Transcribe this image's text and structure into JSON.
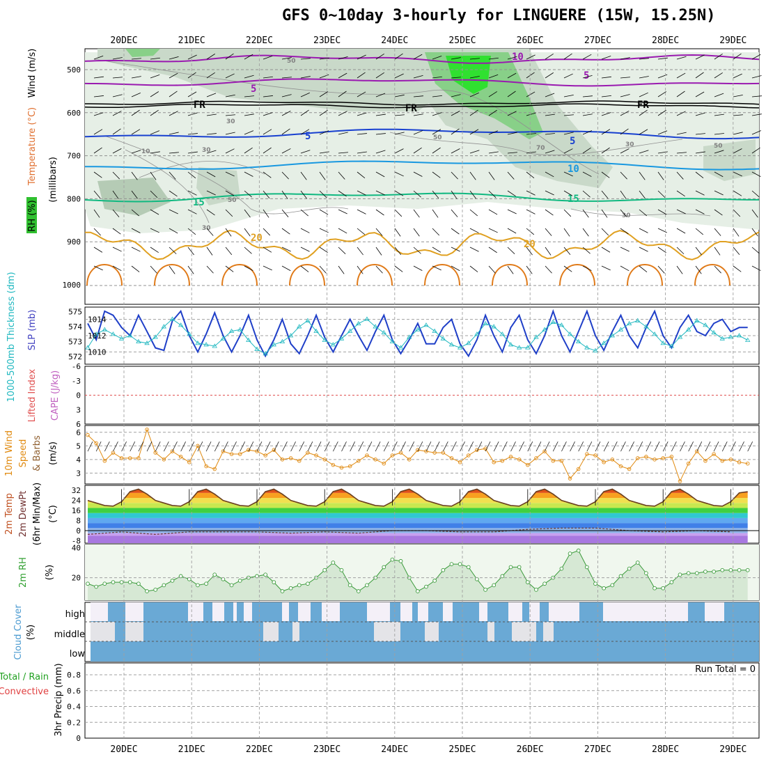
{
  "title": "GFS 0~10day 3-hourly for LINGUERE (15W, 15.25N)",
  "dates": [
    "20DEC",
    "21DEC",
    "22DEC",
    "23DEC",
    "24DEC",
    "25DEC",
    "26DEC",
    "27DEC",
    "28DEC",
    "29DEC"
  ],
  "panels": {
    "upper": {
      "ylabel_rh": "RH (%)",
      "ylabel_temp": "Temperature (°C)",
      "ylabel_wind": "Wind (m/s)",
      "ylabel_units": "(millibars)",
      "yticks": [
        "500",
        "600",
        "700",
        "800",
        "900",
        "1000"
      ],
      "contour_labels": [
        "10",
        "5",
        "5",
        "FR",
        "FR",
        "FR",
        "5",
        "5",
        "10",
        "15",
        "15",
        "20",
        "20",
        "50",
        "30",
        "10",
        "30",
        "30",
        "50",
        "50",
        "50",
        "70",
        "30",
        "30"
      ]
    },
    "slp": {
      "ylabel_thick": "1000-500mb Thickness (dm)",
      "ylabel_slp": "SLP (mb)",
      "yticks_left": [
        "575",
        "574",
        "573",
        "572"
      ],
      "yticks_right": [
        "1014",
        "1012",
        "1010"
      ]
    },
    "li": {
      "ylabel_li": "Lifted Index",
      "ylabel_cape": "CAPE (J/kg)",
      "yticks": [
        "-6",
        "-3",
        "0",
        "3",
        "6"
      ]
    },
    "wind10": {
      "ylabel_a": "10m Wind",
      "ylabel_b": "Speed",
      "ylabel_c": "& Barbs",
      "ylabel_units": "(m/s)",
      "yticks": [
        "6",
        "5",
        "4",
        "3"
      ]
    },
    "temp2m": {
      "ylabel_a": "2m Temp",
      "ylabel_b": "2m DewPt",
      "ylabel_c": "(6hr Min/Max)",
      "ylabel_units": "(°C)",
      "yticks": [
        "32",
        "24",
        "16",
        "8",
        "0",
        "-8"
      ]
    },
    "rh2m": {
      "ylabel": "2m RH",
      "ylabel_units": "(%)",
      "yticks": [
        "40",
        "20"
      ]
    },
    "cloud": {
      "ylabel": "Cloud Cover",
      "ylabel_units": "(%)",
      "levels": [
        "high",
        "middle",
        "low"
      ]
    },
    "precip": {
      "ylabel_total": "Total / Rain",
      "ylabel_conv": "Convective",
      "ylabel_a": "3hr Precip (mm)",
      "run_total": "Run Total = 0",
      "yticks": [
        "0.8",
        "0.6",
        "0.4",
        "0.2",
        "0"
      ]
    }
  },
  "colors": {
    "slp": "#1f3fc8",
    "thickness": "#20b8c0",
    "wind": "#e08a10",
    "rh": "#3a9a3a",
    "cloud": "#6aa9d5",
    "cape": "#c060c0",
    "li": "#e05050"
  },
  "chart_data": [
    {
      "type": "line",
      "title": "Sea level pressure (mb)",
      "x_days": [
        0,
        0.125,
        0.25,
        0.375,
        0.5,
        0.625,
        0.75,
        0.875,
        1,
        1.125,
        1.25,
        1.375,
        1.5,
        1.625,
        1.75,
        1.875,
        2,
        2.125,
        2.25,
        2.375,
        2.5,
        2.625,
        2.75,
        2.875,
        3,
        3.125,
        3.25,
        3.375,
        3.5,
        3.625,
        3.75,
        3.875,
        4,
        4.125,
        4.25,
        4.375,
        4.5,
        4.625,
        4.75,
        4.875,
        5,
        5.125,
        5.25,
        5.375,
        5.5,
        5.625,
        5.75,
        5.875,
        6,
        6.125,
        6.25,
        6.375,
        6.5,
        6.625,
        6.75,
        6.875,
        7,
        7.125,
        7.25,
        7.375,
        7.5,
        7.625,
        7.75,
        7.875,
        8,
        8.125,
        8.25,
        8.375,
        8.5,
        8.625,
        8.75,
        8.875,
        9,
        9.125,
        9.25,
        9.375,
        9.5,
        9.625,
        9.75
      ],
      "values": [
        1013.5,
        1011.5,
        1015.0,
        1014.5,
        1013.0,
        1012.0,
        1014.5,
        1012.5,
        1010.5,
        1010.2,
        1013.8,
        1015.0,
        1012.0,
        1010.0,
        1012.2,
        1014.8,
        1012.0,
        1010.0,
        1012.0,
        1014.5,
        1011.5,
        1009.5,
        1011.5,
        1014.0,
        1011.0,
        1009.8,
        1012.0,
        1014.5,
        1011.8,
        1010.0,
        1012.0,
        1014.0,
        1012.0,
        1010.2,
        1012.5,
        1014.5,
        1011.5,
        1009.8,
        1011.5,
        1013.5,
        1011.0,
        1011.0,
        1013.0,
        1014.0,
        1011.0,
        1009.5,
        1011.5,
        1014.5,
        1012.0,
        1010.0,
        1013.0,
        1014.5,
        1011.5,
        1009.8,
        1012.0,
        1015.0,
        1012.0,
        1010.0,
        1012.5,
        1015.0,
        1012.0,
        1010.2,
        1012.5,
        1014.5,
        1012.0,
        1010.5,
        1013.0,
        1015.0,
        1012.0,
        1010.5,
        1013.0,
        1014.5,
        1012.5,
        1012.0,
        1013.5,
        1014.0,
        1012.5,
        1013.0,
        1013.0
      ],
      "ylim": [
        1008.5,
        1015.5
      ],
      "ylabel": "SLP (mb)"
    },
    {
      "type": "line",
      "title": "1000-500mb Thickness (dm)",
      "x_days": [
        0,
        0.125,
        0.25,
        0.375,
        0.5,
        0.625,
        0.75,
        0.875,
        1,
        1.125,
        1.25,
        1.375,
        1.5,
        1.625,
        1.75,
        1.875,
        2,
        2.125,
        2.25,
        2.375,
        2.5,
        2.625,
        2.75,
        2.875,
        3,
        3.125,
        3.25,
        3.375,
        3.5,
        3.625,
        3.75,
        3.875,
        4,
        4.125,
        4.25,
        4.375,
        4.5,
        4.625,
        4.75,
        4.875,
        5,
        5.125,
        5.25,
        5.375,
        5.5,
        5.625,
        5.75,
        5.875,
        6,
        6.125,
        6.25,
        6.375,
        6.5,
        6.625,
        6.75,
        6.875,
        7,
        7.125,
        7.25,
        7.375,
        7.5,
        7.625,
        7.75,
        7.875,
        8,
        8.125,
        8.25,
        8.375,
        8.5,
        8.625,
        8.75,
        8.875,
        9,
        9.125,
        9.25,
        9.375,
        9.5,
        9.625,
        9.75
      ],
      "values": [
        572.6,
        573.5,
        573.8,
        573.5,
        573.2,
        573.4,
        573.0,
        572.9,
        573.3,
        574.0,
        574.5,
        574.1,
        573.5,
        572.9,
        572.8,
        572.7,
        573.2,
        573.7,
        573.8,
        573.1,
        572.5,
        572.2,
        572.8,
        573.0,
        573.4,
        574.0,
        574.4,
        573.7,
        573.1,
        572.8,
        573.2,
        573.7,
        574.2,
        574.5,
        574.0,
        573.6,
        573.0,
        572.6,
        573.3,
        573.8,
        574.1,
        573.7,
        573.2,
        572.8,
        572.6,
        572.9,
        573.5,
        574.2,
        574.0,
        573.5,
        572.8,
        572.6,
        572.6,
        573.3,
        573.8,
        574.3,
        574.1,
        573.5,
        573.0,
        572.6,
        572.4,
        572.9,
        573.4,
        573.8,
        574.2,
        574.4,
        574.0,
        573.5,
        572.9,
        572.7,
        573.3,
        573.8,
        574.4,
        574.1,
        573.6,
        573.2,
        573.3,
        573.4,
        573.1
      ],
      "ylim": [
        571.5,
        575.3
      ],
      "ylabel": "Thickness (dm)"
    },
    {
      "type": "line",
      "title": "10m Wind Speed (m/s)",
      "x_days": [
        0,
        0.125,
        0.25,
        0.375,
        0.5,
        0.625,
        0.75,
        0.875,
        1,
        1.125,
        1.25,
        1.375,
        1.5,
        1.625,
        1.75,
        1.875,
        2,
        2.125,
        2.25,
        2.375,
        2.5,
        2.625,
        2.75,
        2.875,
        3,
        3.125,
        3.25,
        3.375,
        3.5,
        3.625,
        3.75,
        3.875,
        4,
        4.125,
        4.25,
        4.375,
        4.5,
        4.625,
        4.75,
        4.875,
        5,
        5.125,
        5.25,
        5.375,
        5.5,
        5.625,
        5.75,
        5.875,
        6,
        6.125,
        6.25,
        6.375,
        6.5,
        6.625,
        6.75,
        6.875,
        7,
        7.125,
        7.25,
        7.375,
        7.5,
        7.625,
        7.75,
        7.875,
        8,
        8.125,
        8.25,
        8.375,
        8.5,
        8.625,
        8.75,
        8.875,
        9,
        9.125,
        9.25,
        9.375,
        9.5,
        9.625,
        9.75
      ],
      "values": [
        5.8,
        5.2,
        3.9,
        4.5,
        4.1,
        4.1,
        4.1,
        6.2,
        4.5,
        4.0,
        4.6,
        4.2,
        3.8,
        5.0,
        3.5,
        3.3,
        4.6,
        4.4,
        4.4,
        4.7,
        4.6,
        4.3,
        4.7,
        4.0,
        4.1,
        3.9,
        4.5,
        4.3,
        4.0,
        3.6,
        3.4,
        3.5,
        3.9,
        4.3,
        4.0,
        3.7,
        4.3,
        4.5,
        4.0,
        4.7,
        4.6,
        4.5,
        4.5,
        4.1,
        3.8,
        4.3,
        4.7,
        4.8,
        3.8,
        3.9,
        4.2,
        4.0,
        3.6,
        4.1,
        4.6,
        3.9,
        3.9,
        2.6,
        3.3,
        4.4,
        4.3,
        3.8,
        4.0,
        3.5,
        3.3,
        4.1,
        4.2,
        4.0,
        4.1,
        4.2,
        2.4,
        3.7,
        4.6,
        3.9,
        4.4,
        3.9,
        4.0,
        3.8,
        3.7
      ],
      "ylim": [
        2.2,
        6.5
      ],
      "ylabel": "(m/s)"
    },
    {
      "type": "line",
      "title": "2m Temp (°C)",
      "x_days": [
        0,
        0.125,
        0.25,
        0.375,
        0.5,
        0.625,
        0.75,
        0.875,
        1,
        1.125,
        1.25,
        1.375,
        1.5,
        1.625,
        1.75,
        1.875,
        2,
        2.125,
        2.25,
        2.375,
        2.5,
        2.625,
        2.75,
        2.875,
        3,
        3.125,
        3.25,
        3.375,
        3.5,
        3.625,
        3.75,
        3.875,
        4,
        4.125,
        4.25,
        4.375,
        4.5,
        4.625,
        4.75,
        4.875,
        5,
        5.125,
        5.25,
        5.375,
        5.5,
        5.625,
        5.75,
        5.875,
        6,
        6.125,
        6.25,
        6.375,
        6.5,
        6.625,
        6.75,
        6.875,
        7,
        7.125,
        7.25,
        7.375,
        7.5,
        7.625,
        7.75,
        7.875,
        8,
        8.125,
        8.25,
        8.375,
        8.5,
        8.625,
        8.75,
        8.875,
        9,
        9.125,
        9.25,
        9.375,
        9.5,
        9.625,
        9.75
      ],
      "values": [
        24,
        22,
        20,
        19.5,
        23,
        31,
        33,
        29,
        24,
        22,
        20,
        19.5,
        23,
        31,
        33,
        29,
        24,
        22,
        20,
        19.5,
        23,
        31,
        33,
        29,
        24,
        22,
        20,
        19.5,
        23,
        31,
        33,
        29,
        24,
        22,
        20,
        19.5,
        23,
        31,
        33,
        29,
        24,
        22,
        20,
        19.5,
        23,
        31,
        33,
        29,
        24,
        22,
        20,
        19.5,
        23,
        31,
        33,
        29,
        24,
        22,
        20,
        19.5,
        23,
        31,
        33,
        29,
        24,
        22,
        20,
        19.5,
        23,
        31,
        33,
        29,
        24,
        22,
        20,
        19.5,
        23,
        30,
        31
      ],
      "ylim": [
        -10,
        36
      ],
      "ylabel": "(°C)"
    },
    {
      "type": "line",
      "title": "2m DewPt (°C)",
      "x_days": [
        0,
        0.5,
        1,
        1.5,
        2,
        2.5,
        3,
        3.5,
        4,
        4.5,
        5,
        5.5,
        6,
        6.5,
        7,
        7.5,
        8,
        8.5,
        9,
        9.5
      ],
      "values": [
        -3,
        -1,
        -3,
        -1,
        -1,
        -1,
        -2,
        -1,
        -2,
        0,
        0,
        -1,
        -1,
        1,
        2,
        2,
        0,
        -1,
        0,
        -1
      ],
      "ylim": [
        -10,
        36
      ],
      "ylabel": "(°C)"
    },
    {
      "type": "area",
      "title": "2m RH (%)",
      "x_days": [
        0,
        0.125,
        0.25,
        0.375,
        0.5,
        0.625,
        0.75,
        0.875,
        1,
        1.125,
        1.25,
        1.375,
        1.5,
        1.625,
        1.75,
        1.875,
        2,
        2.125,
        2.25,
        2.375,
        2.5,
        2.625,
        2.75,
        2.875,
        3,
        3.125,
        3.25,
        3.375,
        3.5,
        3.625,
        3.75,
        3.875,
        4,
        4.125,
        4.25,
        4.375,
        4.5,
        4.625,
        4.75,
        4.875,
        5,
        5.125,
        5.25,
        5.375,
        5.5,
        5.625,
        5.75,
        5.875,
        6,
        6.125,
        6.25,
        6.375,
        6.5,
        6.625,
        6.75,
        6.875,
        7,
        7.125,
        7.25,
        7.375,
        7.5,
        7.625,
        7.75,
        7.875,
        8,
        8.125,
        8.25,
        8.375,
        8.5,
        8.625,
        8.75,
        8.875,
        9,
        9.125,
        9.25,
        9.375,
        9.5,
        9.625,
        9.75
      ],
      "values": [
        16,
        14,
        16,
        17,
        17,
        17,
        16,
        11,
        12,
        15,
        18,
        21,
        19,
        15,
        16,
        22,
        19,
        15,
        18,
        20,
        21,
        22,
        17,
        11,
        13,
        15,
        16,
        20,
        25,
        30,
        25,
        15,
        11,
        15,
        20,
        27,
        32,
        31,
        20,
        11,
        14,
        18,
        25,
        29,
        29,
        27,
        19,
        12,
        15,
        21,
        27,
        27,
        17,
        12,
        16,
        20,
        26,
        36,
        38,
        27,
        16,
        13,
        15,
        21,
        26,
        30,
        23,
        13,
        13,
        17,
        22,
        23,
        23,
        24,
        24,
        25,
        25,
        25,
        25
      ],
      "ylim": [
        5,
        42
      ],
      "ylabel": "(%)"
    },
    {
      "type": "bar",
      "title": "3hr Precip (mm)",
      "categories": [
        "Total / Rain",
        "Convective"
      ],
      "values": [
        0,
        0
      ],
      "ylim": [
        0,
        0.95
      ],
      "ylabel": "3hr Precip (mm)"
    }
  ]
}
